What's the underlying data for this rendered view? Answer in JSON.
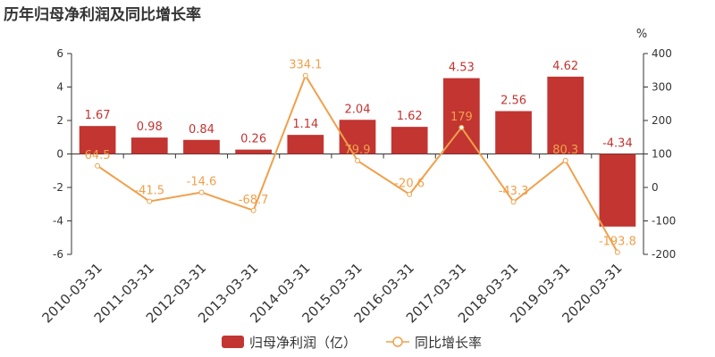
{
  "chart_data": {
    "type": "bar",
    "title": "历年归母净利润及同比增长率",
    "categories": [
      "2010-03-31",
      "2011-03-31",
      "2012-03-31",
      "2013-03-31",
      "2014-03-31",
      "2015-03-31",
      "2016-03-31",
      "2017-03-31",
      "2018-03-31",
      "2019-03-31",
      "2020-03-31"
    ],
    "series": [
      {
        "name": "归母净利润（亿）",
        "type": "bar",
        "axis": "left",
        "color": "#c23531",
        "values": [
          1.67,
          0.98,
          0.84,
          0.26,
          1.14,
          2.04,
          1.62,
          4.53,
          2.56,
          4.62,
          -4.34
        ],
        "labels": [
          "1.67",
          "0.98",
          "0.84",
          "0.26",
          "1.14",
          "2.04",
          "1.62",
          "4.53",
          "2.56",
          "4.62",
          "-4.34"
        ]
      },
      {
        "name": "同比增长率",
        "type": "line",
        "axis": "right",
        "color": "#f0a04b",
        "values": [
          64.5,
          -41.5,
          -14.6,
          -68.7,
          334.1,
          79.9,
          -20.6,
          179,
          -43.3,
          80.3,
          -193.8
        ],
        "labels": [
          "64.5",
          "-41.5",
          "-14.6",
          "-68.7",
          "334.1",
          "79.9",
          "-20.6",
          "179",
          "-43.3",
          "80.3",
          "-193.8"
        ]
      }
    ],
    "y_left": {
      "min": -6,
      "max": 6,
      "ticks": [
        "-6",
        "-4",
        "-2",
        "0",
        "2",
        "4",
        "6"
      ]
    },
    "y_right": {
      "min": -200,
      "max": 400,
      "ticks": [
        "-200",
        "-100",
        "0",
        "100",
        "200",
        "300",
        "400"
      ],
      "unit": "%"
    },
    "grid": false,
    "legend_position": "bottom-center"
  }
}
